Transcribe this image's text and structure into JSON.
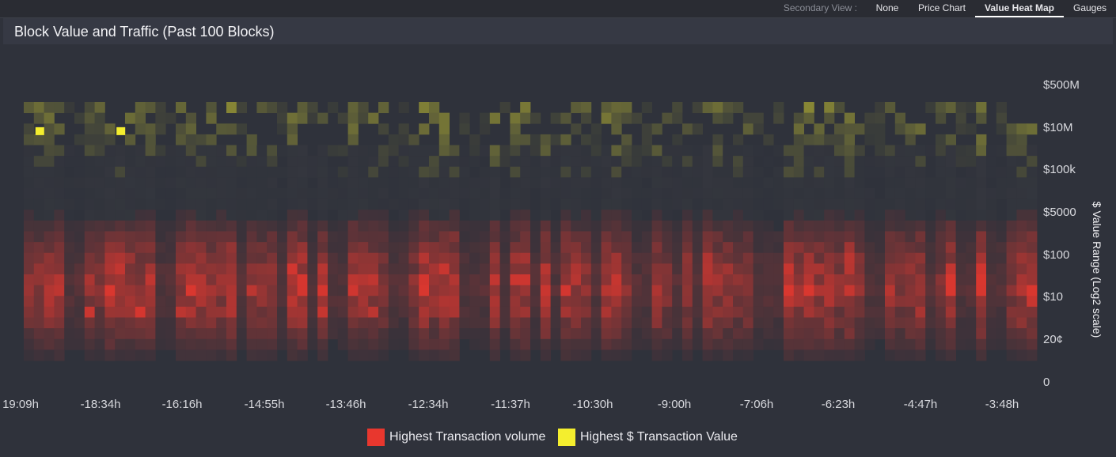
{
  "topbar": {
    "label": "Secondary View :",
    "tabs": [
      {
        "label": "None",
        "active": false
      },
      {
        "label": "Price Chart",
        "active": false
      },
      {
        "label": "Value Heat Map",
        "active": true
      },
      {
        "label": "Gauges",
        "active": false
      }
    ]
  },
  "panel": {
    "title": "Block Value and Traffic (Past 100 Blocks)"
  },
  "colors": {
    "volume": "#e8372e",
    "value": "#f4ee2e",
    "background": "#2f323b"
  },
  "chart_data": {
    "type": "heatmap",
    "title": "Block Value and Traffic (Past 100 Blocks)",
    "ylabel": "$ Value Range (Log2 scale)",
    "xlabel": "",
    "y_axis_ticks": [
      "$500M",
      "$10M",
      "$100k",
      "$5000",
      "$100",
      "$10",
      "20¢",
      "0"
    ],
    "x_axis_ticks": [
      "19:09h",
      "-18:34h",
      "-16:16h",
      "-14:55h",
      "-13:46h",
      "-12:34h",
      "-11:37h",
      "-10:30h",
      "-9:00h",
      "-7:06h",
      "-6:23h",
      "-4:47h",
      "-3:48h"
    ],
    "num_blocks": 100,
    "num_value_bins": 24,
    "legend": [
      {
        "label": "Highest Transaction volume",
        "color": "#e8372e"
      },
      {
        "label": "Highest $ Transaction Value",
        "color": "#f4ee2e"
      }
    ],
    "legend_position": "bottom-center",
    "grid": false
  }
}
